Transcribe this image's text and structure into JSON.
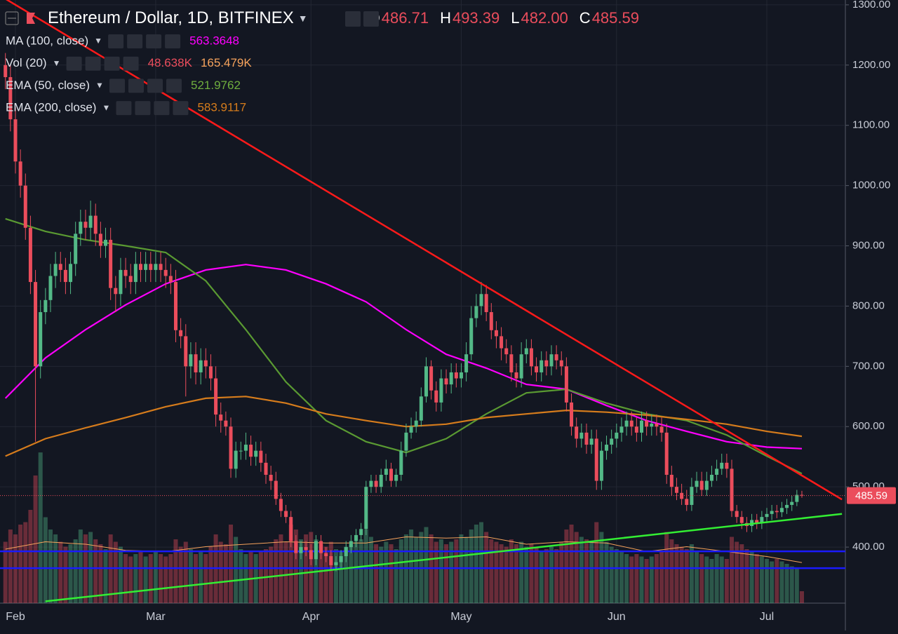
{
  "chart_data": {
    "type": "candlestick",
    "title": "Ethereum / Dollar, 1D, BITFINEX",
    "header_ohlc": [
      {
        "prefix": "O",
        "label": "486.71"
      },
      {
        "prefix": "H",
        "label": "493.39"
      },
      {
        "prefix": "L",
        "label": "482.00"
      },
      {
        "prefix": "C",
        "label": "485.59"
      }
    ],
    "categories": [
      null,
      null,
      "Feb",
      null,
      null,
      null,
      null,
      null,
      null,
      null,
      null,
      null,
      null,
      null,
      null,
      null,
      null,
      null,
      null,
      null,
      null,
      null,
      null,
      null,
      null,
      null,
      null,
      null,
      null,
      null,
      "Mar",
      null,
      null,
      null,
      null,
      null,
      null,
      null,
      null,
      null,
      null,
      null,
      null,
      null,
      null,
      null,
      null,
      null,
      null,
      null,
      null,
      null,
      null,
      null,
      null,
      null,
      null,
      null,
      null,
      null,
      null,
      "Apr",
      null,
      null,
      null,
      null,
      null,
      null,
      null,
      null,
      null,
      null,
      null,
      null,
      null,
      null,
      null,
      null,
      null,
      null,
      null,
      null,
      null,
      null,
      null,
      null,
      null,
      null,
      null,
      null,
      null,
      "May",
      null,
      null,
      null,
      null,
      null,
      null,
      null,
      null,
      null,
      null,
      null,
      null,
      null,
      null,
      null,
      null,
      null,
      null,
      null,
      null,
      null,
      null,
      null,
      null,
      null,
      null,
      null,
      null,
      null,
      null,
      "Jun",
      null,
      null,
      null,
      null,
      null,
      null,
      null,
      null,
      null,
      null,
      null,
      null,
      null,
      null,
      null,
      null,
      null,
      null,
      null,
      null,
      null,
      null,
      null,
      null,
      null,
      null,
      null,
      null,
      null,
      "Jul",
      null,
      null,
      null,
      null,
      null,
      null,
      null
    ],
    "open": [
      1200,
      1180,
      1110,
      1040,
      1000,
      930,
      840,
      700,
      790,
      810,
      850,
      870,
      860,
      840,
      870,
      920,
      940,
      930,
      950,
      920,
      900,
      910,
      830,
      820,
      860,
      850,
      840,
      870,
      860,
      870,
      860,
      870,
      860,
      850,
      840,
      760,
      750,
      700,
      720,
      690,
      710,
      700,
      680,
      620,
      610,
      600,
      530,
      560,
      560,
      570,
      550,
      560,
      540,
      520,
      510,
      480,
      460,
      450,
      410,
      390,
      400,
      395,
      380,
      410,
      390,
      385,
      370,
      375,
      385,
      400,
      410,
      420,
      430,
      500,
      510,
      500,
      520,
      530,
      510,
      520,
      560,
      590,
      600,
      610,
      650,
      700,
      660,
      640,
      680,
      670,
      690,
      680,
      690,
      720,
      780,
      800,
      820,
      790,
      760,
      750,
      730,
      720,
      690,
      680,
      720,
      730,
      700,
      690,
      710,
      700,
      720,
      710,
      700,
      640,
      600,
      580,
      590,
      570,
      580,
      510,
      560,
      570,
      580,
      590,
      600,
      610,
      600,
      590,
      610,
      600,
      605,
      600,
      590,
      520,
      500,
      490,
      480,
      470,
      500,
      510,
      495,
      510,
      520,
      530,
      540,
      530,
      460,
      450,
      440,
      435,
      445,
      440,
      450,
      455,
      460,
      458,
      465,
      470,
      475,
      486.71
    ],
    "high": [
      1220,
      1200,
      1130,
      1060,
      1020,
      950,
      860,
      810,
      830,
      870,
      890,
      890,
      880,
      890,
      940,
      960,
      960,
      975,
      970,
      940,
      930,
      930,
      850,
      880,
      880,
      870,
      890,
      890,
      890,
      890,
      890,
      890,
      880,
      870,
      860,
      780,
      770,
      740,
      740,
      730,
      730,
      720,
      700,
      640,
      625,
      615,
      575,
      575,
      590,
      585,
      575,
      575,
      555,
      535,
      525,
      490,
      470,
      460,
      420,
      410,
      410,
      405,
      420,
      420,
      400,
      395,
      385,
      395,
      410,
      420,
      430,
      440,
      510,
      520,
      520,
      530,
      545,
      540,
      530,
      575,
      605,
      615,
      625,
      665,
      715,
      710,
      675,
      695,
      695,
      705,
      705,
      705,
      740,
      800,
      820,
      840,
      835,
      805,
      775,
      765,
      745,
      735,
      705,
      740,
      745,
      745,
      715,
      725,
      725,
      735,
      735,
      725,
      715,
      655,
      615,
      605,
      605,
      595,
      595,
      575,
      585,
      595,
      605,
      615,
      625,
      625,
      615,
      625,
      625,
      620,
      620,
      615,
      605,
      535,
      515,
      505,
      495,
      515,
      525,
      525,
      525,
      535,
      545,
      555,
      555,
      545,
      470,
      460,
      450,
      455,
      455,
      460,
      465,
      470,
      470,
      475,
      480,
      485,
      495,
      493.39
    ],
    "low": [
      1160,
      1090,
      1020,
      980,
      910,
      820,
      575,
      680,
      770,
      790,
      830,
      840,
      820,
      820,
      850,
      900,
      910,
      910,
      900,
      880,
      880,
      810,
      790,
      800,
      830,
      820,
      820,
      840,
      840,
      840,
      840,
      840,
      830,
      820,
      740,
      730,
      650,
      680,
      670,
      670,
      680,
      660,
      600,
      590,
      585,
      515,
      515,
      545,
      545,
      535,
      535,
      525,
      505,
      495,
      470,
      450,
      440,
      400,
      380,
      380,
      385,
      370,
      370,
      380,
      375,
      360,
      360,
      365,
      375,
      390,
      400,
      410,
      420,
      490,
      490,
      490,
      510,
      500,
      500,
      510,
      550,
      580,
      590,
      600,
      640,
      645,
      625,
      625,
      655,
      655,
      665,
      665,
      675,
      710,
      765,
      785,
      775,
      745,
      730,
      710,
      705,
      675,
      665,
      665,
      705,
      685,
      675,
      675,
      685,
      685,
      695,
      685,
      625,
      585,
      565,
      565,
      555,
      555,
      495,
      495,
      545,
      555,
      565,
      575,
      585,
      585,
      575,
      575,
      585,
      585,
      585,
      575,
      505,
      485,
      478,
      470,
      460,
      460,
      490,
      485,
      485,
      500,
      510,
      520,
      515,
      450,
      440,
      430,
      425,
      425,
      430,
      430,
      440,
      445,
      448,
      450,
      455,
      460,
      468,
      482
    ],
    "close": [
      1180,
      1110,
      1040,
      1000,
      930,
      840,
      700,
      790,
      810,
      850,
      870,
      860,
      840,
      870,
      920,
      940,
      930,
      950,
      920,
      900,
      910,
      830,
      820,
      860,
      850,
      840,
      870,
      860,
      870,
      860,
      870,
      860,
      850,
      840,
      760,
      750,
      700,
      720,
      690,
      710,
      700,
      680,
      620,
      610,
      600,
      530,
      560,
      560,
      570,
      550,
      560,
      540,
      520,
      510,
      480,
      460,
      450,
      410,
      390,
      400,
      395,
      380,
      410,
      390,
      385,
      370,
      375,
      385,
      400,
      410,
      420,
      430,
      500,
      510,
      500,
      520,
      530,
      510,
      520,
      560,
      590,
      600,
      610,
      650,
      700,
      660,
      640,
      680,
      670,
      690,
      680,
      690,
      720,
      780,
      800,
      820,
      790,
      760,
      750,
      730,
      720,
      690,
      680,
      720,
      730,
      700,
      690,
      710,
      700,
      720,
      710,
      700,
      640,
      600,
      580,
      590,
      570,
      580,
      510,
      560,
      570,
      580,
      590,
      600,
      610,
      600,
      590,
      610,
      600,
      605,
      600,
      590,
      520,
      500,
      490,
      480,
      470,
      500,
      510,
      495,
      510,
      520,
      530,
      540,
      530,
      460,
      450,
      440,
      435,
      445,
      440,
      450,
      455,
      460,
      458,
      465,
      470,
      475,
      486.71,
      485.59
    ],
    "up_color": "#53b987",
    "down_color": "#eb4d5c",
    "ylim": [
      307,
      1308
    ],
    "yticks": [
      {
        "value": 400,
        "label": "400.00"
      },
      {
        "value": 500,
        "label": "500.00"
      },
      {
        "value": 600,
        "label": "600.00"
      },
      {
        "value": 700,
        "label": "700.00"
      },
      {
        "value": 800,
        "label": "800.00"
      },
      {
        "value": 900,
        "label": "900.00"
      },
      {
        "value": 1000,
        "label": "1000.00"
      },
      {
        "value": 1100,
        "label": "1100.00"
      },
      {
        "value": 1200,
        "label": "1200.00"
      },
      {
        "value": 1300,
        "label": "1300.00"
      }
    ],
    "grid": true,
    "y2lim": [
      0,
      800
    ],
    "volume": {
      "name": "Vol (20)",
      "axis": "y2",
      "value_label": "48.638K",
      "values": [
        250,
        300,
        280,
        320,
        330,
        380,
        520,
        614,
        350,
        300,
        280,
        250,
        230,
        240,
        260,
        300,
        280,
        290,
        260,
        240,
        220,
        280,
        250,
        230,
        200,
        190,
        200,
        210,
        190,
        200,
        210,
        200,
        190,
        200,
        260,
        230,
        250,
        220,
        200,
        210,
        200,
        230,
        280,
        250,
        240,
        320,
        270,
        220,
        200,
        210,
        200,
        210,
        220,
        230,
        260,
        280,
        250,
        320,
        300,
        260,
        280,
        290,
        260,
        240,
        230,
        250,
        220,
        210,
        230,
        240,
        250,
        260,
        300,
        270,
        240,
        230,
        250,
        240,
        220,
        260,
        280,
        300,
        270,
        290,
        310,
        280,
        250,
        260,
        240,
        250,
        260,
        280,
        270,
        300,
        320,
        330,
        290,
        260,
        250,
        240,
        230,
        260,
        240,
        250,
        230,
        240,
        230,
        210,
        220,
        230,
        220,
        250,
        300,
        320,
        290,
        270,
        260,
        250,
        330,
        290,
        250,
        230,
        220,
        210,
        200,
        190,
        200,
        190,
        180,
        190,
        200,
        210,
        290,
        260,
        240,
        230,
        220,
        240,
        210,
        200,
        190,
        180,
        200,
        190,
        180,
        270,
        250,
        240,
        220,
        210,
        200,
        190,
        180,
        170,
        180,
        170,
        160,
        150,
        140,
        48.638
      ],
      "ma": {
        "color": "#f7a35c",
        "value_label": "165.479K",
        "x": [
          0,
          8,
          16,
          24,
          32,
          40,
          48,
          56,
          64,
          72,
          80,
          88,
          96,
          104,
          112,
          120,
          128,
          136,
          144,
          152,
          159
        ],
        "values": [
          220,
          250,
          240,
          215,
          210,
          230,
          240,
          250,
          245,
          245,
          270,
          265,
          270,
          240,
          250,
          245,
          210,
          230,
          210,
          190,
          165.479
        ]
      }
    },
    "indicators": [
      {
        "name": "MA (100, close)",
        "color": "#ff00ff",
        "x": [
          0,
          8,
          16,
          24,
          32,
          40,
          48,
          56,
          64,
          72,
          80,
          88,
          96,
          104,
          112,
          120,
          128,
          136,
          144,
          152,
          159
        ],
        "values": [
          647,
          714,
          761,
          802,
          837,
          860,
          869,
          860,
          837,
          807,
          761,
          720,
          697,
          670,
          662,
          635,
          610,
          592,
          575,
          566,
          563.3648
        ]
      },
      {
        "name": "EMA (50, close)",
        "color": "#5a9a32",
        "x": [
          0,
          8,
          16,
          24,
          32,
          40,
          48,
          56,
          64,
          72,
          80,
          88,
          96,
          104,
          112,
          120,
          128,
          136,
          144,
          152,
          159
        ],
        "values": [
          945,
          924,
          910,
          900,
          889,
          842,
          761,
          674,
          610,
          575,
          557,
          580,
          621,
          656,
          662,
          639,
          621,
          610,
          586,
          551,
          521.9762
        ]
      },
      {
        "name": "EMA (200, close)",
        "color": "#d67c1c",
        "x": [
          0,
          8,
          16,
          24,
          32,
          40,
          48,
          56,
          64,
          72,
          80,
          88,
          96,
          104,
          112,
          120,
          128,
          136,
          144,
          152,
          159
        ],
        "values": [
          551,
          580,
          598,
          615,
          633,
          647,
          650,
          639,
          621,
          610,
          600,
          604,
          615,
          621,
          627,
          624,
          619,
          612,
          604,
          592,
          583.9117
        ]
      }
    ],
    "trend_lines": [
      {
        "color": "#ff1a1a",
        "x": [
          0,
          167
        ],
        "values": [
          1310,
          479
        ]
      },
      {
        "color": "#33ee33",
        "x": [
          8,
          167
        ],
        "values": [
          310,
          455
        ]
      }
    ],
    "horizontal_lines": [
      {
        "color": "#1a1aff",
        "value": 393
      },
      {
        "color": "#1a1aff",
        "value": 365
      }
    ]
  }
}
